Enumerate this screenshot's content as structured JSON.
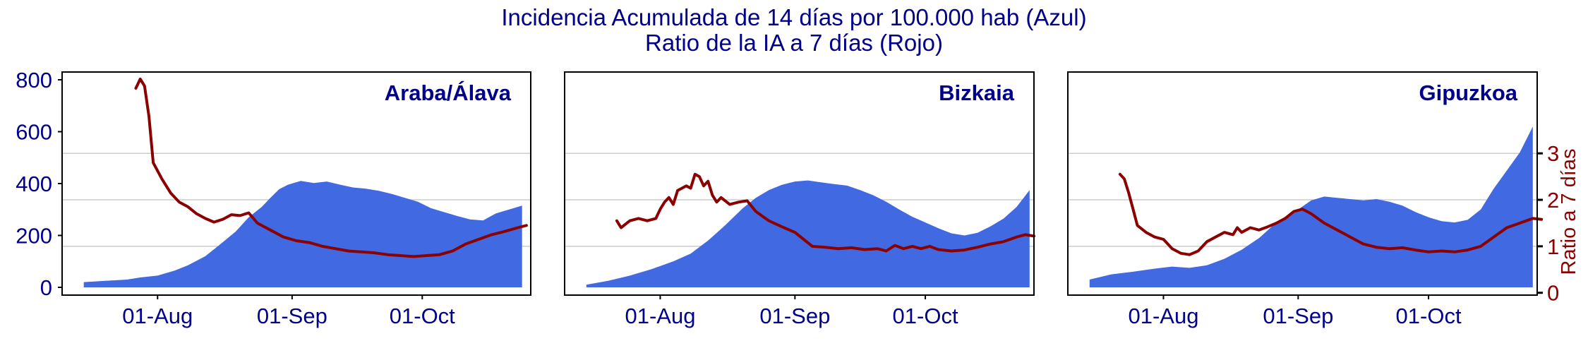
{
  "title": {
    "line1": "Incidencia Acumulada de 14 días por 100.000 hab (Azul)",
    "line2": "Ratio de la IA a 7 días (Rojo)"
  },
  "colors": {
    "area": "#4169e1",
    "ratio_line": "#8b0000",
    "text_blue": "#00008b",
    "grid": "#cccccc",
    "frame": "#000000"
  },
  "chart_data": {
    "type": "area",
    "x_domain": [
      "2020-07-10",
      "2020-10-26"
    ],
    "xticks": [
      {
        "date": "2020-08-01",
        "label": "01-Aug"
      },
      {
        "date": "2020-09-01",
        "label": "01-Sep"
      },
      {
        "date": "2020-10-01",
        "label": "01-Oct"
      }
    ],
    "left_axis": {
      "ylim": [
        -30,
        830
      ],
      "ticks": [
        0,
        200,
        400,
        600,
        800
      ],
      "label": ""
    },
    "right_axis": {
      "ylim": [
        -0.05,
        4.75
      ],
      "ticks": [
        0,
        1,
        2,
        3
      ],
      "label": "Ratio a 7 días"
    },
    "grid_y_right": [
      1,
      2,
      3
    ],
    "panels": [
      {
        "name": "Araba/Álava",
        "incidence": [
          {
            "x": "2020-07-15",
            "y": 20
          },
          {
            "x": "2020-07-20",
            "y": 25
          },
          {
            "x": "2020-07-25",
            "y": 30
          },
          {
            "x": "2020-07-28",
            "y": 38
          },
          {
            "x": "2020-08-01",
            "y": 45
          },
          {
            "x": "2020-08-05",
            "y": 65
          },
          {
            "x": "2020-08-08",
            "y": 85
          },
          {
            "x": "2020-08-12",
            "y": 120
          },
          {
            "x": "2020-08-15",
            "y": 160
          },
          {
            "x": "2020-08-19",
            "y": 215
          },
          {
            "x": "2020-08-22",
            "y": 270
          },
          {
            "x": "2020-08-25",
            "y": 310
          },
          {
            "x": "2020-08-27",
            "y": 345
          },
          {
            "x": "2020-08-29",
            "y": 378
          },
          {
            "x": "2020-08-31",
            "y": 395
          },
          {
            "x": "2020-09-03",
            "y": 410
          },
          {
            "x": "2020-09-06",
            "y": 402
          },
          {
            "x": "2020-09-09",
            "y": 408
          },
          {
            "x": "2020-09-12",
            "y": 396
          },
          {
            "x": "2020-09-15",
            "y": 385
          },
          {
            "x": "2020-09-18",
            "y": 380
          },
          {
            "x": "2020-09-21",
            "y": 372
          },
          {
            "x": "2020-09-24",
            "y": 360
          },
          {
            "x": "2020-09-27",
            "y": 345
          },
          {
            "x": "2020-09-30",
            "y": 330
          },
          {
            "x": "2020-10-03",
            "y": 305
          },
          {
            "x": "2020-10-06",
            "y": 290
          },
          {
            "x": "2020-10-09",
            "y": 275
          },
          {
            "x": "2020-10-12",
            "y": 262
          },
          {
            "x": "2020-10-15",
            "y": 258
          },
          {
            "x": "2020-10-18",
            "y": 285
          },
          {
            "x": "2020-10-21",
            "y": 300
          },
          {
            "x": "2020-10-24",
            "y": 315
          }
        ],
        "ratio": [
          {
            "x": "2020-07-27",
            "y": 4.4
          },
          {
            "x": "2020-07-28",
            "y": 4.6
          },
          {
            "x": "2020-07-29",
            "y": 4.45
          },
          {
            "x": "2020-07-30",
            "y": 3.8
          },
          {
            "x": "2020-07-31",
            "y": 2.8
          },
          {
            "x": "2020-08-02",
            "y": 2.45
          },
          {
            "x": "2020-08-04",
            "y": 2.15
          },
          {
            "x": "2020-08-06",
            "y": 1.95
          },
          {
            "x": "2020-08-08",
            "y": 1.85
          },
          {
            "x": "2020-08-10",
            "y": 1.7
          },
          {
            "x": "2020-08-12",
            "y": 1.6
          },
          {
            "x": "2020-08-14",
            "y": 1.52
          },
          {
            "x": "2020-08-16",
            "y": 1.58
          },
          {
            "x": "2020-08-18",
            "y": 1.68
          },
          {
            "x": "2020-08-20",
            "y": 1.66
          },
          {
            "x": "2020-08-22",
            "y": 1.72
          },
          {
            "x": "2020-08-24",
            "y": 1.5
          },
          {
            "x": "2020-08-27",
            "y": 1.35
          },
          {
            "x": "2020-08-30",
            "y": 1.2
          },
          {
            "x": "2020-09-02",
            "y": 1.12
          },
          {
            "x": "2020-09-05",
            "y": 1.08
          },
          {
            "x": "2020-09-08",
            "y": 1.0
          },
          {
            "x": "2020-09-11",
            "y": 0.95
          },
          {
            "x": "2020-09-14",
            "y": 0.9
          },
          {
            "x": "2020-09-17",
            "y": 0.88
          },
          {
            "x": "2020-09-20",
            "y": 0.86
          },
          {
            "x": "2020-09-23",
            "y": 0.82
          },
          {
            "x": "2020-09-26",
            "y": 0.8
          },
          {
            "x": "2020-09-29",
            "y": 0.78
          },
          {
            "x": "2020-10-02",
            "y": 0.8
          },
          {
            "x": "2020-10-05",
            "y": 0.82
          },
          {
            "x": "2020-10-08",
            "y": 0.9
          },
          {
            "x": "2020-10-11",
            "y": 1.05
          },
          {
            "x": "2020-10-14",
            "y": 1.15
          },
          {
            "x": "2020-10-17",
            "y": 1.25
          },
          {
            "x": "2020-10-20",
            "y": 1.32
          },
          {
            "x": "2020-10-23",
            "y": 1.4
          },
          {
            "x": "2020-10-25",
            "y": 1.45
          }
        ]
      },
      {
        "name": "Bizkaia",
        "incidence": [
          {
            "x": "2020-07-15",
            "y": 10
          },
          {
            "x": "2020-07-20",
            "y": 25
          },
          {
            "x": "2020-07-25",
            "y": 45
          },
          {
            "x": "2020-07-30",
            "y": 70
          },
          {
            "x": "2020-08-04",
            "y": 100
          },
          {
            "x": "2020-08-08",
            "y": 130
          },
          {
            "x": "2020-08-12",
            "y": 180
          },
          {
            "x": "2020-08-16",
            "y": 240
          },
          {
            "x": "2020-08-20",
            "y": 305
          },
          {
            "x": "2020-08-23",
            "y": 345
          },
          {
            "x": "2020-08-26",
            "y": 375
          },
          {
            "x": "2020-08-29",
            "y": 395
          },
          {
            "x": "2020-09-01",
            "y": 408
          },
          {
            "x": "2020-09-04",
            "y": 412
          },
          {
            "x": "2020-09-07",
            "y": 405
          },
          {
            "x": "2020-09-10",
            "y": 398
          },
          {
            "x": "2020-09-13",
            "y": 392
          },
          {
            "x": "2020-09-16",
            "y": 375
          },
          {
            "x": "2020-09-19",
            "y": 355
          },
          {
            "x": "2020-09-22",
            "y": 330
          },
          {
            "x": "2020-09-25",
            "y": 300
          },
          {
            "x": "2020-09-28",
            "y": 272
          },
          {
            "x": "2020-10-01",
            "y": 250
          },
          {
            "x": "2020-10-04",
            "y": 228
          },
          {
            "x": "2020-10-07",
            "y": 208
          },
          {
            "x": "2020-10-10",
            "y": 200
          },
          {
            "x": "2020-10-13",
            "y": 210
          },
          {
            "x": "2020-10-16",
            "y": 235
          },
          {
            "x": "2020-10-19",
            "y": 265
          },
          {
            "x": "2020-10-22",
            "y": 310
          },
          {
            "x": "2020-10-25",
            "y": 375
          }
        ],
        "ratio": [
          {
            "x": "2020-07-22",
            "y": 1.55
          },
          {
            "x": "2020-07-23",
            "y": 1.4
          },
          {
            "x": "2020-07-25",
            "y": 1.55
          },
          {
            "x": "2020-07-27",
            "y": 1.6
          },
          {
            "x": "2020-07-29",
            "y": 1.55
          },
          {
            "x": "2020-07-31",
            "y": 1.6
          },
          {
            "x": "2020-08-01",
            "y": 1.8
          },
          {
            "x": "2020-08-02",
            "y": 1.95
          },
          {
            "x": "2020-08-03",
            "y": 2.05
          },
          {
            "x": "2020-08-04",
            "y": 1.9
          },
          {
            "x": "2020-08-05",
            "y": 2.2
          },
          {
            "x": "2020-08-07",
            "y": 2.3
          },
          {
            "x": "2020-08-08",
            "y": 2.25
          },
          {
            "x": "2020-08-09",
            "y": 2.55
          },
          {
            "x": "2020-08-10",
            "y": 2.5
          },
          {
            "x": "2020-08-11",
            "y": 2.3
          },
          {
            "x": "2020-08-12",
            "y": 2.4
          },
          {
            "x": "2020-08-13",
            "y": 2.1
          },
          {
            "x": "2020-08-14",
            "y": 1.95
          },
          {
            "x": "2020-08-15",
            "y": 2.05
          },
          {
            "x": "2020-08-17",
            "y": 1.9
          },
          {
            "x": "2020-08-19",
            "y": 1.95
          },
          {
            "x": "2020-08-21",
            "y": 1.98
          },
          {
            "x": "2020-08-23",
            "y": 1.75
          },
          {
            "x": "2020-08-26",
            "y": 1.55
          },
          {
            "x": "2020-08-29",
            "y": 1.42
          },
          {
            "x": "2020-09-01",
            "y": 1.3
          },
          {
            "x": "2020-09-03",
            "y": 1.15
          },
          {
            "x": "2020-09-05",
            "y": 1.0
          },
          {
            "x": "2020-09-08",
            "y": 0.98
          },
          {
            "x": "2020-09-11",
            "y": 0.95
          },
          {
            "x": "2020-09-14",
            "y": 0.97
          },
          {
            "x": "2020-09-17",
            "y": 0.93
          },
          {
            "x": "2020-09-20",
            "y": 0.95
          },
          {
            "x": "2020-09-22",
            "y": 0.9
          },
          {
            "x": "2020-09-24",
            "y": 1.02
          },
          {
            "x": "2020-09-26",
            "y": 0.95
          },
          {
            "x": "2020-09-28",
            "y": 1.0
          },
          {
            "x": "2020-09-30",
            "y": 0.95
          },
          {
            "x": "2020-10-02",
            "y": 1.0
          },
          {
            "x": "2020-10-04",
            "y": 0.93
          },
          {
            "x": "2020-10-07",
            "y": 0.9
          },
          {
            "x": "2020-10-10",
            "y": 0.92
          },
          {
            "x": "2020-10-13",
            "y": 0.98
          },
          {
            "x": "2020-10-16",
            "y": 1.05
          },
          {
            "x": "2020-10-19",
            "y": 1.1
          },
          {
            "x": "2020-10-22",
            "y": 1.2
          },
          {
            "x": "2020-10-24",
            "y": 1.25
          },
          {
            "x": "2020-10-26",
            "y": 1.22
          }
        ]
      },
      {
        "name": "Gipuzkoa",
        "incidence": [
          {
            "x": "2020-07-15",
            "y": 30
          },
          {
            "x": "2020-07-20",
            "y": 50
          },
          {
            "x": "2020-07-25",
            "y": 60
          },
          {
            "x": "2020-07-30",
            "y": 72
          },
          {
            "x": "2020-08-03",
            "y": 80
          },
          {
            "x": "2020-08-07",
            "y": 75
          },
          {
            "x": "2020-08-11",
            "y": 85
          },
          {
            "x": "2020-08-15",
            "y": 110
          },
          {
            "x": "2020-08-19",
            "y": 145
          },
          {
            "x": "2020-08-23",
            "y": 190
          },
          {
            "x": "2020-08-26",
            "y": 235
          },
          {
            "x": "2020-08-29",
            "y": 270
          },
          {
            "x": "2020-09-01",
            "y": 300
          },
          {
            "x": "2020-09-04",
            "y": 335
          },
          {
            "x": "2020-09-07",
            "y": 350
          },
          {
            "x": "2020-09-10",
            "y": 345
          },
          {
            "x": "2020-09-13",
            "y": 340
          },
          {
            "x": "2020-09-16",
            "y": 335
          },
          {
            "x": "2020-09-19",
            "y": 340
          },
          {
            "x": "2020-09-22",
            "y": 330
          },
          {
            "x": "2020-09-25",
            "y": 315
          },
          {
            "x": "2020-09-28",
            "y": 290
          },
          {
            "x": "2020-10-01",
            "y": 270
          },
          {
            "x": "2020-10-04",
            "y": 255
          },
          {
            "x": "2020-10-07",
            "y": 250
          },
          {
            "x": "2020-10-10",
            "y": 260
          },
          {
            "x": "2020-10-13",
            "y": 300
          },
          {
            "x": "2020-10-16",
            "y": 380
          },
          {
            "x": "2020-10-19",
            "y": 450
          },
          {
            "x": "2020-10-22",
            "y": 520
          },
          {
            "x": "2020-10-25",
            "y": 620
          }
        ],
        "ratio": [
          {
            "x": "2020-07-22",
            "y": 2.55
          },
          {
            "x": "2020-07-23",
            "y": 2.45
          },
          {
            "x": "2020-07-24",
            "y": 2.15
          },
          {
            "x": "2020-07-25",
            "y": 1.8
          },
          {
            "x": "2020-07-26",
            "y": 1.45
          },
          {
            "x": "2020-07-28",
            "y": 1.3
          },
          {
            "x": "2020-07-30",
            "y": 1.2
          },
          {
            "x": "2020-08-01",
            "y": 1.15
          },
          {
            "x": "2020-08-03",
            "y": 0.95
          },
          {
            "x": "2020-08-05",
            "y": 0.85
          },
          {
            "x": "2020-08-07",
            "y": 0.82
          },
          {
            "x": "2020-08-09",
            "y": 0.9
          },
          {
            "x": "2020-08-11",
            "y": 1.1
          },
          {
            "x": "2020-08-13",
            "y": 1.2
          },
          {
            "x": "2020-08-15",
            "y": 1.3
          },
          {
            "x": "2020-08-17",
            "y": 1.25
          },
          {
            "x": "2020-08-18",
            "y": 1.4
          },
          {
            "x": "2020-08-19",
            "y": 1.3
          },
          {
            "x": "2020-08-21",
            "y": 1.4
          },
          {
            "x": "2020-08-23",
            "y": 1.35
          },
          {
            "x": "2020-08-25",
            "y": 1.42
          },
          {
            "x": "2020-08-27",
            "y": 1.5
          },
          {
            "x": "2020-08-29",
            "y": 1.6
          },
          {
            "x": "2020-08-31",
            "y": 1.75
          },
          {
            "x": "2020-09-02",
            "y": 1.8
          },
          {
            "x": "2020-09-04",
            "y": 1.7
          },
          {
            "x": "2020-09-07",
            "y": 1.5
          },
          {
            "x": "2020-09-10",
            "y": 1.35
          },
          {
            "x": "2020-09-13",
            "y": 1.2
          },
          {
            "x": "2020-09-16",
            "y": 1.05
          },
          {
            "x": "2020-09-19",
            "y": 0.98
          },
          {
            "x": "2020-09-22",
            "y": 0.95
          },
          {
            "x": "2020-09-25",
            "y": 0.97
          },
          {
            "x": "2020-09-28",
            "y": 0.92
          },
          {
            "x": "2020-10-01",
            "y": 0.88
          },
          {
            "x": "2020-10-04",
            "y": 0.9
          },
          {
            "x": "2020-10-07",
            "y": 0.88
          },
          {
            "x": "2020-10-10",
            "y": 0.92
          },
          {
            "x": "2020-10-13",
            "y": 1.0
          },
          {
            "x": "2020-10-16",
            "y": 1.2
          },
          {
            "x": "2020-10-19",
            "y": 1.4
          },
          {
            "x": "2020-10-22",
            "y": 1.5
          },
          {
            "x": "2020-10-25",
            "y": 1.6
          },
          {
            "x": "2020-10-27",
            "y": 1.58
          }
        ]
      }
    ]
  }
}
